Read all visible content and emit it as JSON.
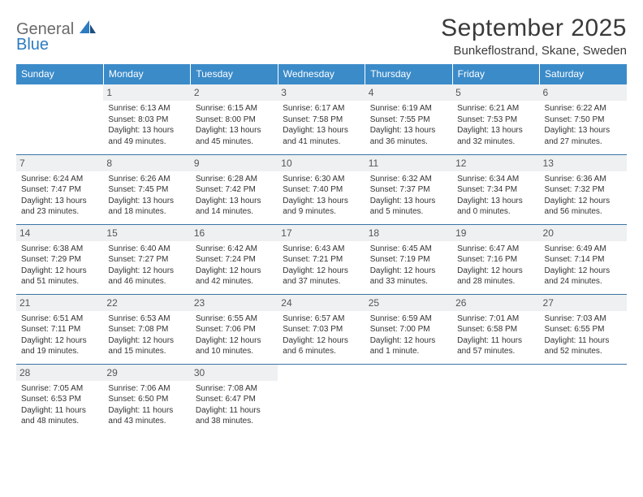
{
  "logo": {
    "line1": "General",
    "line2": "Blue"
  },
  "title": "September 2025",
  "location": "Bunkeflostrand, Skane, Sweden",
  "colors": {
    "header_bg": "#3b8bc9",
    "header_text": "#ffffff",
    "rule": "#3b74a5",
    "daynum_bg": "#eef0f1",
    "logo_gray": "#6a6a6a",
    "logo_blue": "#2d7bc0"
  },
  "weekdays": [
    "Sunday",
    "Monday",
    "Tuesday",
    "Wednesday",
    "Thursday",
    "Friday",
    "Saturday"
  ],
  "weeks": [
    [
      null,
      {
        "n": "1",
        "sunrise": "6:13 AM",
        "sunset": "8:03 PM",
        "daylight": "13 hours and 49 minutes."
      },
      {
        "n": "2",
        "sunrise": "6:15 AM",
        "sunset": "8:00 PM",
        "daylight": "13 hours and 45 minutes."
      },
      {
        "n": "3",
        "sunrise": "6:17 AM",
        "sunset": "7:58 PM",
        "daylight": "13 hours and 41 minutes."
      },
      {
        "n": "4",
        "sunrise": "6:19 AM",
        "sunset": "7:55 PM",
        "daylight": "13 hours and 36 minutes."
      },
      {
        "n": "5",
        "sunrise": "6:21 AM",
        "sunset": "7:53 PM",
        "daylight": "13 hours and 32 minutes."
      },
      {
        "n": "6",
        "sunrise": "6:22 AM",
        "sunset": "7:50 PM",
        "daylight": "13 hours and 27 minutes."
      }
    ],
    [
      {
        "n": "7",
        "sunrise": "6:24 AM",
        "sunset": "7:47 PM",
        "daylight": "13 hours and 23 minutes."
      },
      {
        "n": "8",
        "sunrise": "6:26 AM",
        "sunset": "7:45 PM",
        "daylight": "13 hours and 18 minutes."
      },
      {
        "n": "9",
        "sunrise": "6:28 AM",
        "sunset": "7:42 PM",
        "daylight": "13 hours and 14 minutes."
      },
      {
        "n": "10",
        "sunrise": "6:30 AM",
        "sunset": "7:40 PM",
        "daylight": "13 hours and 9 minutes."
      },
      {
        "n": "11",
        "sunrise": "6:32 AM",
        "sunset": "7:37 PM",
        "daylight": "13 hours and 5 minutes."
      },
      {
        "n": "12",
        "sunrise": "6:34 AM",
        "sunset": "7:34 PM",
        "daylight": "13 hours and 0 minutes."
      },
      {
        "n": "13",
        "sunrise": "6:36 AM",
        "sunset": "7:32 PM",
        "daylight": "12 hours and 56 minutes."
      }
    ],
    [
      {
        "n": "14",
        "sunrise": "6:38 AM",
        "sunset": "7:29 PM",
        "daylight": "12 hours and 51 minutes."
      },
      {
        "n": "15",
        "sunrise": "6:40 AM",
        "sunset": "7:27 PM",
        "daylight": "12 hours and 46 minutes."
      },
      {
        "n": "16",
        "sunrise": "6:42 AM",
        "sunset": "7:24 PM",
        "daylight": "12 hours and 42 minutes."
      },
      {
        "n": "17",
        "sunrise": "6:43 AM",
        "sunset": "7:21 PM",
        "daylight": "12 hours and 37 minutes."
      },
      {
        "n": "18",
        "sunrise": "6:45 AM",
        "sunset": "7:19 PM",
        "daylight": "12 hours and 33 minutes."
      },
      {
        "n": "19",
        "sunrise": "6:47 AM",
        "sunset": "7:16 PM",
        "daylight": "12 hours and 28 minutes."
      },
      {
        "n": "20",
        "sunrise": "6:49 AM",
        "sunset": "7:14 PM",
        "daylight": "12 hours and 24 minutes."
      }
    ],
    [
      {
        "n": "21",
        "sunrise": "6:51 AM",
        "sunset": "7:11 PM",
        "daylight": "12 hours and 19 minutes."
      },
      {
        "n": "22",
        "sunrise": "6:53 AM",
        "sunset": "7:08 PM",
        "daylight": "12 hours and 15 minutes."
      },
      {
        "n": "23",
        "sunrise": "6:55 AM",
        "sunset": "7:06 PM",
        "daylight": "12 hours and 10 minutes."
      },
      {
        "n": "24",
        "sunrise": "6:57 AM",
        "sunset": "7:03 PM",
        "daylight": "12 hours and 6 minutes."
      },
      {
        "n": "25",
        "sunrise": "6:59 AM",
        "sunset": "7:00 PM",
        "daylight": "12 hours and 1 minute."
      },
      {
        "n": "26",
        "sunrise": "7:01 AM",
        "sunset": "6:58 PM",
        "daylight": "11 hours and 57 minutes."
      },
      {
        "n": "27",
        "sunrise": "7:03 AM",
        "sunset": "6:55 PM",
        "daylight": "11 hours and 52 minutes."
      }
    ],
    [
      {
        "n": "28",
        "sunrise": "7:05 AM",
        "sunset": "6:53 PM",
        "daylight": "11 hours and 48 minutes."
      },
      {
        "n": "29",
        "sunrise": "7:06 AM",
        "sunset": "6:50 PM",
        "daylight": "11 hours and 43 minutes."
      },
      {
        "n": "30",
        "sunrise": "7:08 AM",
        "sunset": "6:47 PM",
        "daylight": "11 hours and 38 minutes."
      },
      null,
      null,
      null,
      null
    ]
  ],
  "labels": {
    "sunrise": "Sunrise: ",
    "sunset": "Sunset: ",
    "daylight": "Daylight: "
  }
}
